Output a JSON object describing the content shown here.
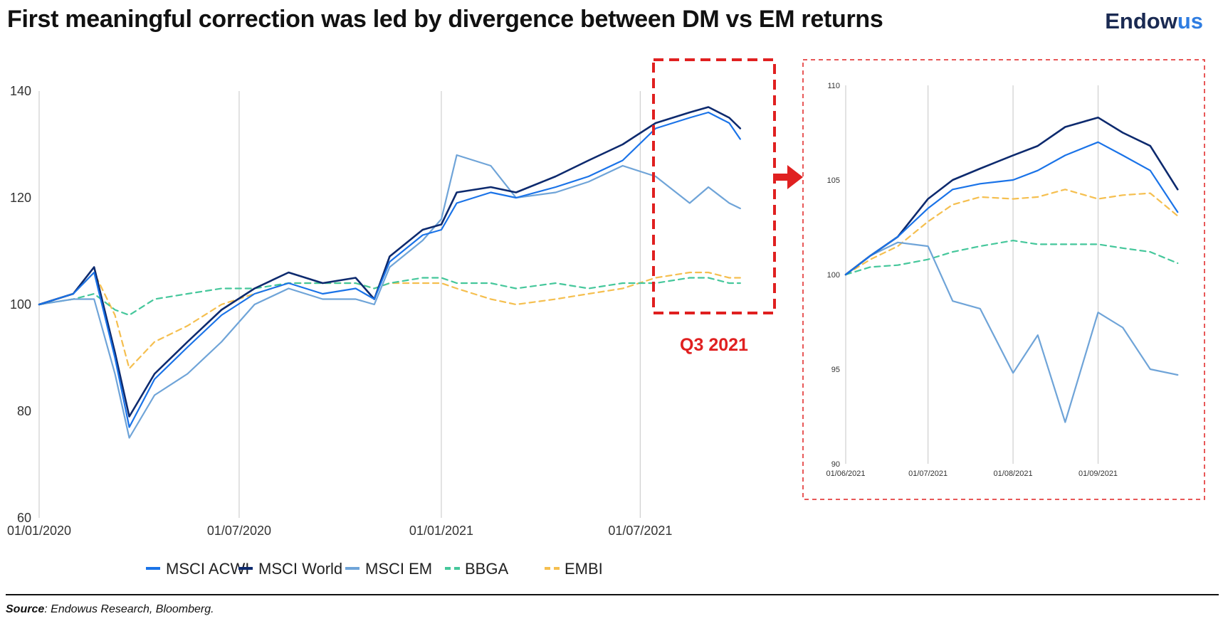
{
  "title": "First meaningful correction was led by divergence between DM vs EM returns",
  "logo": {
    "main": "Endow",
    "accent": "us"
  },
  "highlight_label": "Q3 2021",
  "source": {
    "label": "Source",
    "text": ": Endowus Research, Bloomberg."
  },
  "colors": {
    "acwi": "#1a73e8",
    "world": "#0d2a6e",
    "em": "#6fa4d8",
    "bbga": "#45c79b",
    "embi": "#f5bf4f",
    "highlight": "#e02020"
  },
  "chart_data": [
    {
      "type": "line",
      "xlabel": "",
      "ylabel": "",
      "x_ticks": [
        "01/01/2020",
        "01/07/2020",
        "01/01/2021",
        "01/07/2021"
      ],
      "ylim": [
        60,
        140
      ],
      "y_ticks": [
        60,
        80,
        100,
        120,
        140
      ],
      "grid": "vertical",
      "legend": "bottom",
      "x": [
        "2020-01-01",
        "2020-02-01",
        "2020-02-20",
        "2020-03-10",
        "2020-03-23",
        "2020-04-15",
        "2020-05-15",
        "2020-06-15",
        "2020-07-15",
        "2020-08-15",
        "2020-09-15",
        "2020-10-15",
        "2020-11-01",
        "2020-11-15",
        "2020-12-15",
        "2021-01-01",
        "2021-01-15",
        "2021-02-15",
        "2021-03-10",
        "2021-04-15",
        "2021-05-15",
        "2021-06-15",
        "2021-07-15",
        "2021-08-15",
        "2021-09-01",
        "2021-09-20",
        "2021-09-30"
      ],
      "series": [
        {
          "name": "MSCI ACWI",
          "values": [
            100,
            102,
            106,
            90,
            77,
            86,
            92,
            98,
            102,
            104,
            102,
            103,
            101,
            108,
            113,
            114,
            119,
            121,
            120,
            122,
            124,
            127,
            133,
            135,
            136,
            134,
            131
          ]
        },
        {
          "name": "MSCI World",
          "values": [
            100,
            102,
            107,
            91,
            79,
            87,
            93,
            99,
            103,
            106,
            104,
            105,
            101,
            109,
            114,
            115,
            121,
            122,
            121,
            124,
            127,
            130,
            134,
            136,
            137,
            135,
            133
          ]
        },
        {
          "name": "MSCI EM",
          "values": [
            100,
            101,
            101,
            87,
            75,
            83,
            87,
            93,
            100,
            103,
            101,
            101,
            100,
            107,
            112,
            116,
            128,
            126,
            120,
            121,
            123,
            126,
            124,
            119,
            122,
            119,
            118
          ]
        },
        {
          "name": "BBGA",
          "values": [
            100,
            101,
            102,
            99,
            98,
            101,
            102,
            103,
            103,
            104,
            104,
            104,
            103,
            104,
            105,
            105,
            104,
            104,
            103,
            104,
            103,
            104,
            104,
            105,
            105,
            104,
            104
          ]
        },
        {
          "name": "EMBI",
          "values": [
            100,
            102,
            106,
            98,
            88,
            93,
            96,
            100,
            102,
            104,
            104,
            104,
            103,
            104,
            104,
            104,
            103,
            101,
            100,
            101,
            102,
            103,
            105,
            106,
            106,
            105,
            105
          ]
        }
      ]
    },
    {
      "type": "line",
      "xlabel": "",
      "ylabel": "",
      "x_ticks": [
        "01/06/2021",
        "01/07/2021",
        "01/08/2021",
        "01/09/2021"
      ],
      "ylim": [
        90,
        110
      ],
      "y_ticks": [
        90,
        95,
        100,
        105,
        110
      ],
      "grid": "vertical",
      "x": [
        "2021-06-01",
        "2021-06-10",
        "2021-06-20",
        "2021-07-01",
        "2021-07-10",
        "2021-07-20",
        "2021-08-01",
        "2021-08-10",
        "2021-08-20",
        "2021-09-01",
        "2021-09-10",
        "2021-09-20",
        "2021-09-30"
      ],
      "series": [
        {
          "name": "MSCI ACWI",
          "values": [
            100,
            101,
            102,
            103.5,
            104.5,
            104.8,
            105,
            105.5,
            106.3,
            107,
            106.3,
            105.5,
            103.3
          ]
        },
        {
          "name": "MSCI World",
          "values": [
            100,
            101,
            102,
            104,
            105,
            105.6,
            106.3,
            106.8,
            107.8,
            108.3,
            107.5,
            106.8,
            104.5
          ]
        },
        {
          "name": "MSCI EM",
          "values": [
            100,
            101,
            101.7,
            101.5,
            98.6,
            98.2,
            94.8,
            96.8,
            92.2,
            98,
            97.2,
            95,
            94.7
          ]
        },
        {
          "name": "BBGA",
          "values": [
            100,
            100.4,
            100.5,
            100.8,
            101.2,
            101.5,
            101.8,
            101.6,
            101.6,
            101.6,
            101.4,
            101.2,
            100.6
          ]
        },
        {
          "name": "EMBI",
          "values": [
            100,
            100.8,
            101.5,
            102.8,
            103.7,
            104.1,
            104,
            104.1,
            104.5,
            104,
            104.2,
            104.3,
            103.1
          ]
        }
      ]
    }
  ]
}
